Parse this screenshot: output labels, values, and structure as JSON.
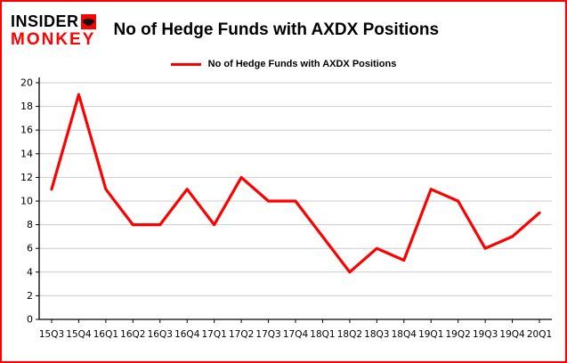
{
  "colors": {
    "accent": "#fe0000",
    "grid": "#cccccc",
    "axis": "#000000",
    "background": "#ffffff"
  },
  "header": {
    "logo_line1": "INSIDER",
    "logo_line2": "MONKEY",
    "title": "No of Hedge Funds with AXDX Positions"
  },
  "legend": {
    "label": "No of Hedge Funds with AXDX Positions"
  },
  "chart_data": {
    "type": "line",
    "title": "No of Hedge Funds with AXDX Positions",
    "categories": [
      "15Q3",
      "15Q4",
      "16Q1",
      "16Q2",
      "16Q3",
      "16Q4",
      "17Q1",
      "17Q2",
      "17Q3",
      "17Q4",
      "18Q1",
      "18Q2",
      "18Q3",
      "18Q4",
      "19Q1",
      "19Q2",
      "19Q3",
      "19Q4",
      "20Q1"
    ],
    "values": [
      11,
      19,
      11,
      8,
      8,
      11,
      8,
      12,
      10,
      10,
      7,
      4,
      6,
      5,
      11,
      10,
      6,
      7,
      9
    ],
    "xlabel": "",
    "ylabel": "",
    "ylim": [
      0,
      20
    ],
    "ytick_step": 2,
    "grid": true,
    "legend_position": "top",
    "line_color": "#fe0000"
  }
}
